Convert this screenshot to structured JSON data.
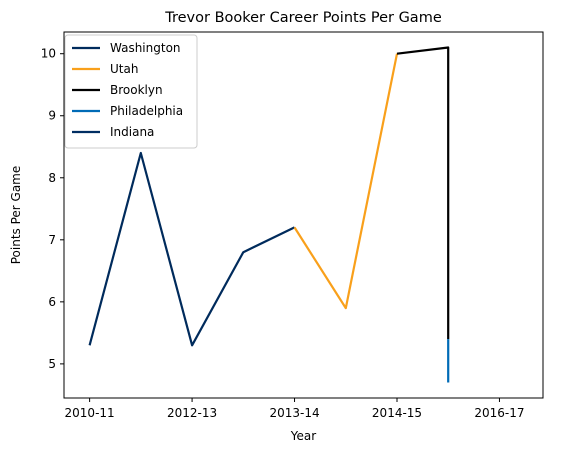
{
  "chart_data": {
    "type": "line",
    "title": "Trevor Booker Career Points Per Game",
    "xlabel": "Year",
    "ylabel": "Points Per Game",
    "xlim": [
      2009.5,
      2018.85
    ],
    "ylim": [
      4.45,
      10.35
    ],
    "x_ticks": [
      {
        "value": 2010,
        "label": "2010-11"
      },
      {
        "value": 2012,
        "label": "2012-13"
      },
      {
        "value": 2014,
        "label": "2013-14"
      },
      {
        "value": 2016,
        "label": "2014-15"
      },
      {
        "value": 2018,
        "label": "2016-17"
      }
    ],
    "y_ticks": [
      5,
      6,
      7,
      8,
      9,
      10
    ],
    "legend_position": "top-left",
    "series": [
      {
        "name": "Washington",
        "color": "#002b5c",
        "points": [
          [
            2010,
            5.3
          ],
          [
            2011,
            8.4
          ],
          [
            2012,
            5.3
          ],
          [
            2013,
            6.8
          ],
          [
            2014,
            7.2
          ]
        ]
      },
      {
        "name": "Utah",
        "color": "#f9a01b",
        "points": [
          [
            2014,
            7.2
          ],
          [
            2015,
            5.9
          ],
          [
            2016,
            10.0
          ]
        ]
      },
      {
        "name": "Brooklyn",
        "color": "#000000",
        "points": [
          [
            2016,
            10.0
          ],
          [
            2017,
            10.1
          ],
          [
            2017,
            5.4
          ]
        ]
      },
      {
        "name": "Philadelphia",
        "color": "#006bb6",
        "points": [
          [
            2017,
            5.4
          ],
          [
            2017,
            4.7
          ]
        ]
      },
      {
        "name": "Indiana",
        "color": "#002d62",
        "points": []
      }
    ]
  }
}
